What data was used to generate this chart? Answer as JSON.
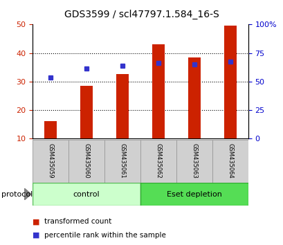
{
  "title": "GDS3599 / scl47797.1.584_16-S",
  "samples": [
    "GSM435059",
    "GSM435060",
    "GSM435061",
    "GSM435062",
    "GSM435063",
    "GSM435064"
  ],
  "bar_values": [
    16,
    28.5,
    32.5,
    43,
    38.5,
    49.5
  ],
  "dot_values": [
    31.5,
    34.5,
    35.5,
    36.5,
    36,
    37
  ],
  "bar_color": "#cc2200",
  "dot_color": "#3333cc",
  "ylim_left": [
    10,
    50
  ],
  "ylim_right": [
    0,
    100
  ],
  "yticks_left": [
    10,
    20,
    30,
    40,
    50
  ],
  "yticks_right": [
    0,
    25,
    50,
    75,
    100
  ],
  "yticklabels_right": [
    "0",
    "25",
    "50",
    "75",
    "100%"
  ],
  "groups": [
    {
      "label": "control",
      "indices": [
        0,
        1,
        2
      ],
      "color": "#ccffcc",
      "border": "#55bb55"
    },
    {
      "label": "Eset depletion",
      "indices": [
        3,
        4,
        5
      ],
      "color": "#55dd55",
      "border": "#33aa33"
    }
  ],
  "protocol_label": "protocol",
  "legend_bar_label": "transformed count",
  "legend_dot_label": "percentile rank within the sample",
  "title_fontsize": 10,
  "tick_fontsize": 8,
  "label_fontsize": 8,
  "left_axis_color": "#cc2200",
  "right_axis_color": "#0000cc",
  "background_color": "#ffffff",
  "sample_box_color": "#d0d0d0",
  "sample_box_edge": "#999999"
}
